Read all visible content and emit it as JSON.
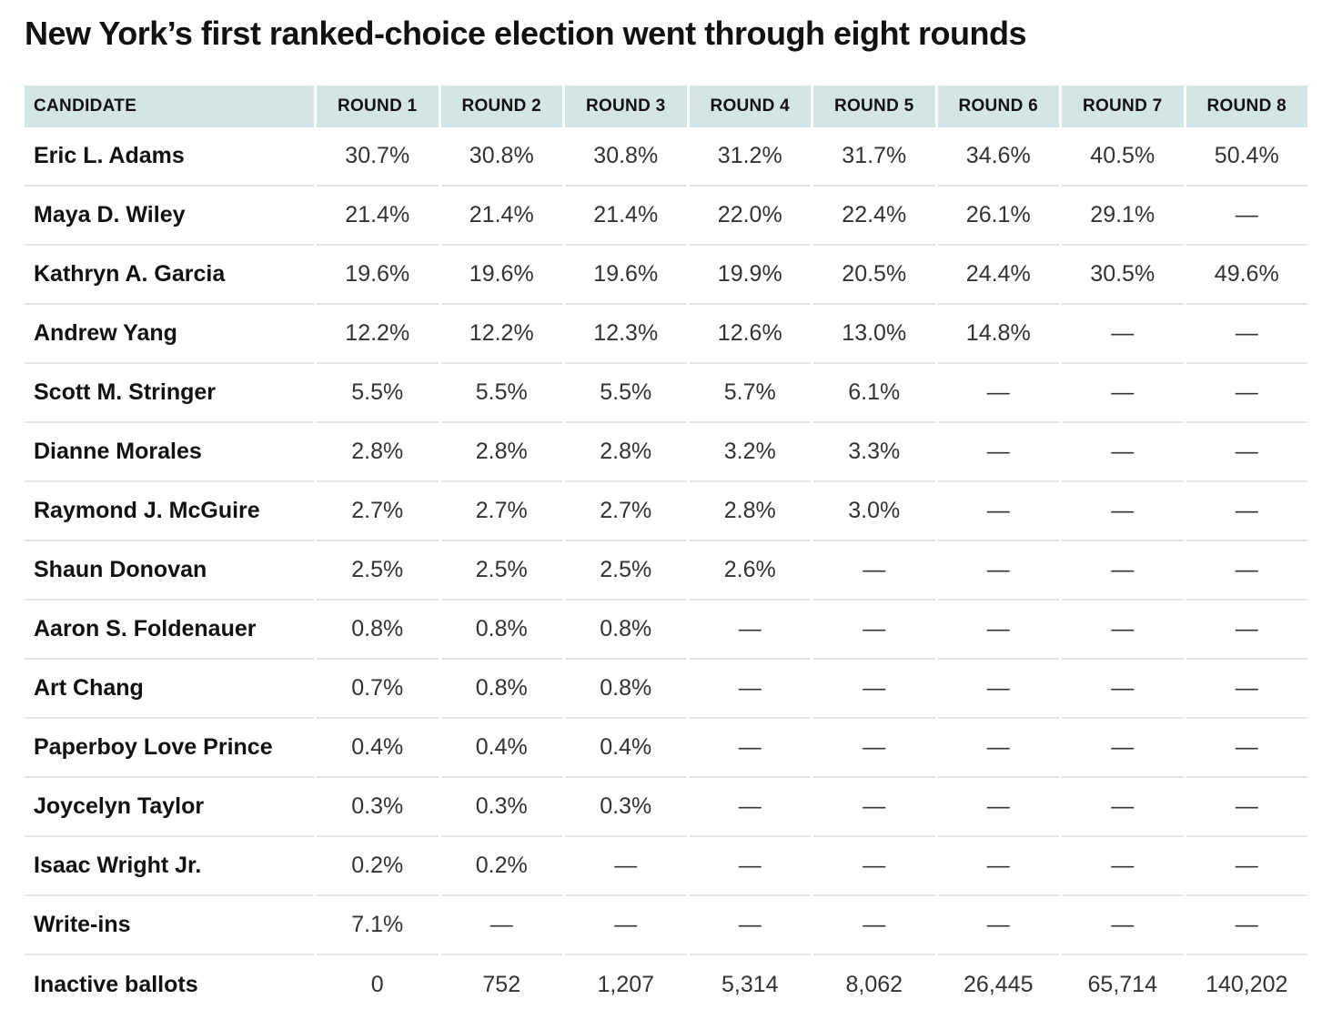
{
  "title": "New York’s first ranked-choice election went through eight rounds",
  "chart_data": {
    "type": "table",
    "title": "New York’s first ranked-choice election went through eight rounds",
    "columns": [
      "CANDIDATE",
      "ROUND 1",
      "ROUND 2",
      "ROUND 3",
      "ROUND 4",
      "ROUND 5",
      "ROUND 6",
      "ROUND 7",
      "ROUND 8"
    ],
    "empty_marker": "—",
    "rows": [
      {
        "candidate": "Eric L. Adams",
        "values": [
          "30.7%",
          "30.8%",
          "30.8%",
          "31.2%",
          "31.7%",
          "34.6%",
          "40.5%",
          "50.4%"
        ]
      },
      {
        "candidate": "Maya D. Wiley",
        "values": [
          "21.4%",
          "21.4%",
          "21.4%",
          "22.0%",
          "22.4%",
          "26.1%",
          "29.1%",
          "—"
        ]
      },
      {
        "candidate": "Kathryn A. Garcia",
        "values": [
          "19.6%",
          "19.6%",
          "19.6%",
          "19.9%",
          "20.5%",
          "24.4%",
          "30.5%",
          "49.6%"
        ]
      },
      {
        "candidate": "Andrew Yang",
        "values": [
          "12.2%",
          "12.2%",
          "12.3%",
          "12.6%",
          "13.0%",
          "14.8%",
          "—",
          "—"
        ]
      },
      {
        "candidate": "Scott M. Stringer",
        "values": [
          "5.5%",
          "5.5%",
          "5.5%",
          "5.7%",
          "6.1%",
          "—",
          "—",
          "—"
        ]
      },
      {
        "candidate": "Dianne Morales",
        "values": [
          "2.8%",
          "2.8%",
          "2.8%",
          "3.2%",
          "3.3%",
          "—",
          "—",
          "—"
        ]
      },
      {
        "candidate": "Raymond J. McGuire",
        "values": [
          "2.7%",
          "2.7%",
          "2.7%",
          "2.8%",
          "3.0%",
          "—",
          "—",
          "—"
        ]
      },
      {
        "candidate": "Shaun Donovan",
        "values": [
          "2.5%",
          "2.5%",
          "2.5%",
          "2.6%",
          "—",
          "—",
          "—",
          "—"
        ]
      },
      {
        "candidate": "Aaron S. Foldenauer",
        "values": [
          "0.8%",
          "0.8%",
          "0.8%",
          "—",
          "—",
          "—",
          "—",
          "—"
        ]
      },
      {
        "candidate": "Art Chang",
        "values": [
          "0.7%",
          "0.8%",
          "0.8%",
          "—",
          "—",
          "—",
          "—",
          "—"
        ]
      },
      {
        "candidate": "Paperboy Love Prince",
        "values": [
          "0.4%",
          "0.4%",
          "0.4%",
          "—",
          "—",
          "—",
          "—",
          "—"
        ]
      },
      {
        "candidate": "Joycelyn Taylor",
        "values": [
          "0.3%",
          "0.3%",
          "0.3%",
          "—",
          "—",
          "—",
          "—",
          "—"
        ]
      },
      {
        "candidate": "Isaac Wright Jr.",
        "values": [
          "0.2%",
          "0.2%",
          "—",
          "—",
          "—",
          "—",
          "—",
          "—"
        ]
      },
      {
        "candidate": "Write-ins",
        "values": [
          "7.1%",
          "—",
          "—",
          "—",
          "—",
          "—",
          "—",
          "—"
        ]
      },
      {
        "candidate": "Inactive ballots",
        "values": [
          "0",
          "752",
          "1,207",
          "5,314",
          "8,062",
          "26,445",
          "65,714",
          "140,202"
        ]
      }
    ]
  },
  "colors": {
    "header_bg": "#d3e5e4",
    "title_text": "#121212",
    "candidate_text": "#121212",
    "value_text": "#333333",
    "row_separator": "#e4e4e4",
    "background": "#ffffff"
  }
}
